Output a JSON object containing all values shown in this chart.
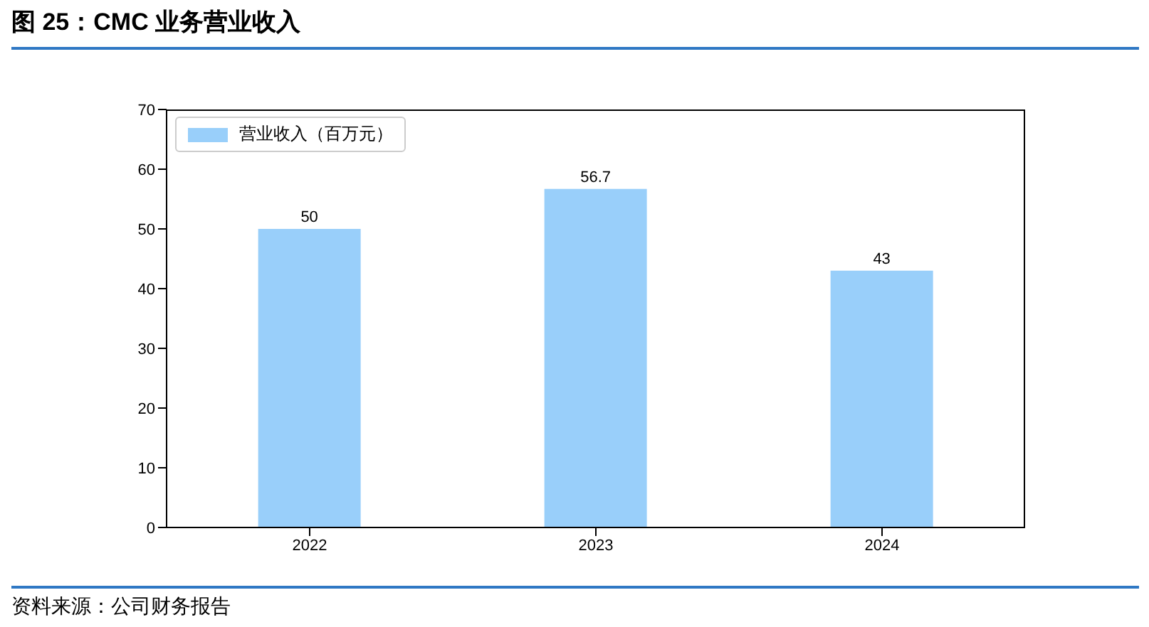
{
  "chart_data": {
    "type": "bar",
    "title": "图 25：CMC 业务营业收入",
    "categories": [
      "2022",
      "2023",
      "2024"
    ],
    "series": [
      {
        "name": "营业收入（百万元）",
        "color": "#99cffa",
        "values": [
          50,
          56.7,
          43
        ]
      }
    ],
    "ylim": [
      0,
      70
    ],
    "yticks": [
      0,
      10,
      20,
      30,
      40,
      50,
      60,
      70
    ],
    "data_labels": true,
    "legend": "top left",
    "annotations": [
      "资料来源：公司财务报告"
    ]
  }
}
